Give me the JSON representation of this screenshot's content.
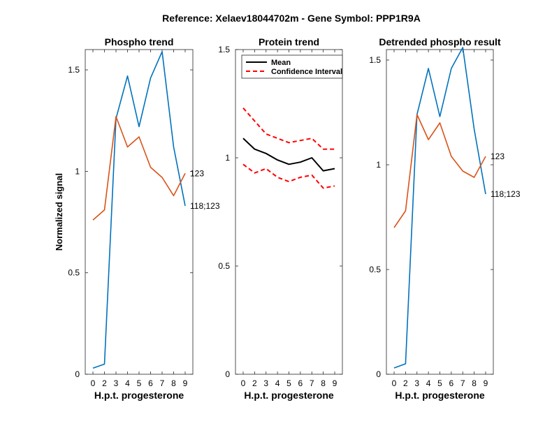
{
  "suptitle": "Reference:  Xelaev18044702m - Gene Symbol:  PPP1R9A",
  "colors": {
    "blue": "#0072BD",
    "orange": "#D95319",
    "black": "#000000",
    "red": "#FF0000"
  },
  "chart_data": [
    {
      "type": "line",
      "title": "Phospho trend",
      "xlabel": "H.p.t. progesterone",
      "ylabel": "Normalized signal",
      "categories": [
        "0",
        "2",
        "3",
        "4",
        "5",
        "6",
        "7",
        "8",
        "9"
      ],
      "ylim": [
        0,
        1.6
      ],
      "yticks": [
        0,
        0.5,
        1,
        1.5
      ],
      "series": [
        {
          "name": "118;123",
          "color": "#0072BD",
          "style": "solid",
          "values": [
            0.03,
            0.05,
            1.26,
            1.47,
            1.22,
            1.46,
            1.59,
            1.12,
            0.83
          ]
        },
        {
          "name": "123",
          "color": "#D95319",
          "style": "solid",
          "values": [
            0.76,
            0.81,
            1.27,
            1.12,
            1.17,
            1.02,
            0.97,
            0.88,
            0.99
          ]
        }
      ],
      "annotations": [
        {
          "text": "123",
          "series": 1
        },
        {
          "text": "118;123",
          "series": 0
        }
      ]
    },
    {
      "type": "line",
      "title": "Protein trend",
      "xlabel": "H.p.t. progesterone",
      "ylabel": "",
      "categories": [
        "0",
        "2",
        "3",
        "4",
        "5",
        "6",
        "7",
        "8",
        "9"
      ],
      "ylim": [
        0,
        1.5
      ],
      "yticks": [
        0,
        0.5,
        1,
        1.5
      ],
      "series": [
        {
          "name": "Mean",
          "color": "#000000",
          "style": "solid",
          "values": [
            1.09,
            1.04,
            1.02,
            0.99,
            0.97,
            0.98,
            1.0,
            0.94,
            0.95
          ]
        },
        {
          "name": "Confidence Interval",
          "color": "#FF0000",
          "style": "dashed",
          "values": [
            1.23,
            1.17,
            1.11,
            1.09,
            1.07,
            1.08,
            1.09,
            1.04,
            1.04
          ]
        },
        {
          "name": "",
          "color": "#FF0000",
          "style": "dashed",
          "values": [
            0.97,
            0.93,
            0.95,
            0.91,
            0.89,
            0.91,
            0.92,
            0.86,
            0.87
          ]
        }
      ],
      "legend": {
        "position": "top-left",
        "entries": [
          "Mean",
          "Confidence Interval"
        ]
      }
    },
    {
      "type": "line",
      "title": "Detrended phospho result",
      "xlabel": "H.p.t. progesterone",
      "ylabel": "",
      "categories": [
        "0",
        "2",
        "3",
        "4",
        "5",
        "6",
        "7",
        "8",
        "9"
      ],
      "ylim": [
        0,
        1.55
      ],
      "yticks": [
        0,
        0.5,
        1,
        1.5
      ],
      "series": [
        {
          "name": "118;123",
          "color": "#0072BD",
          "style": "solid",
          "values": [
            0.03,
            0.05,
            1.24,
            1.46,
            1.23,
            1.46,
            1.56,
            1.17,
            0.86
          ]
        },
        {
          "name": "123",
          "color": "#D95319",
          "style": "solid",
          "values": [
            0.7,
            0.78,
            1.24,
            1.12,
            1.2,
            1.04,
            0.97,
            0.94,
            1.04
          ]
        }
      ],
      "annotations": [
        {
          "text": "123",
          "series": 1
        },
        {
          "text": "118;123",
          "series": 0
        }
      ]
    }
  ]
}
